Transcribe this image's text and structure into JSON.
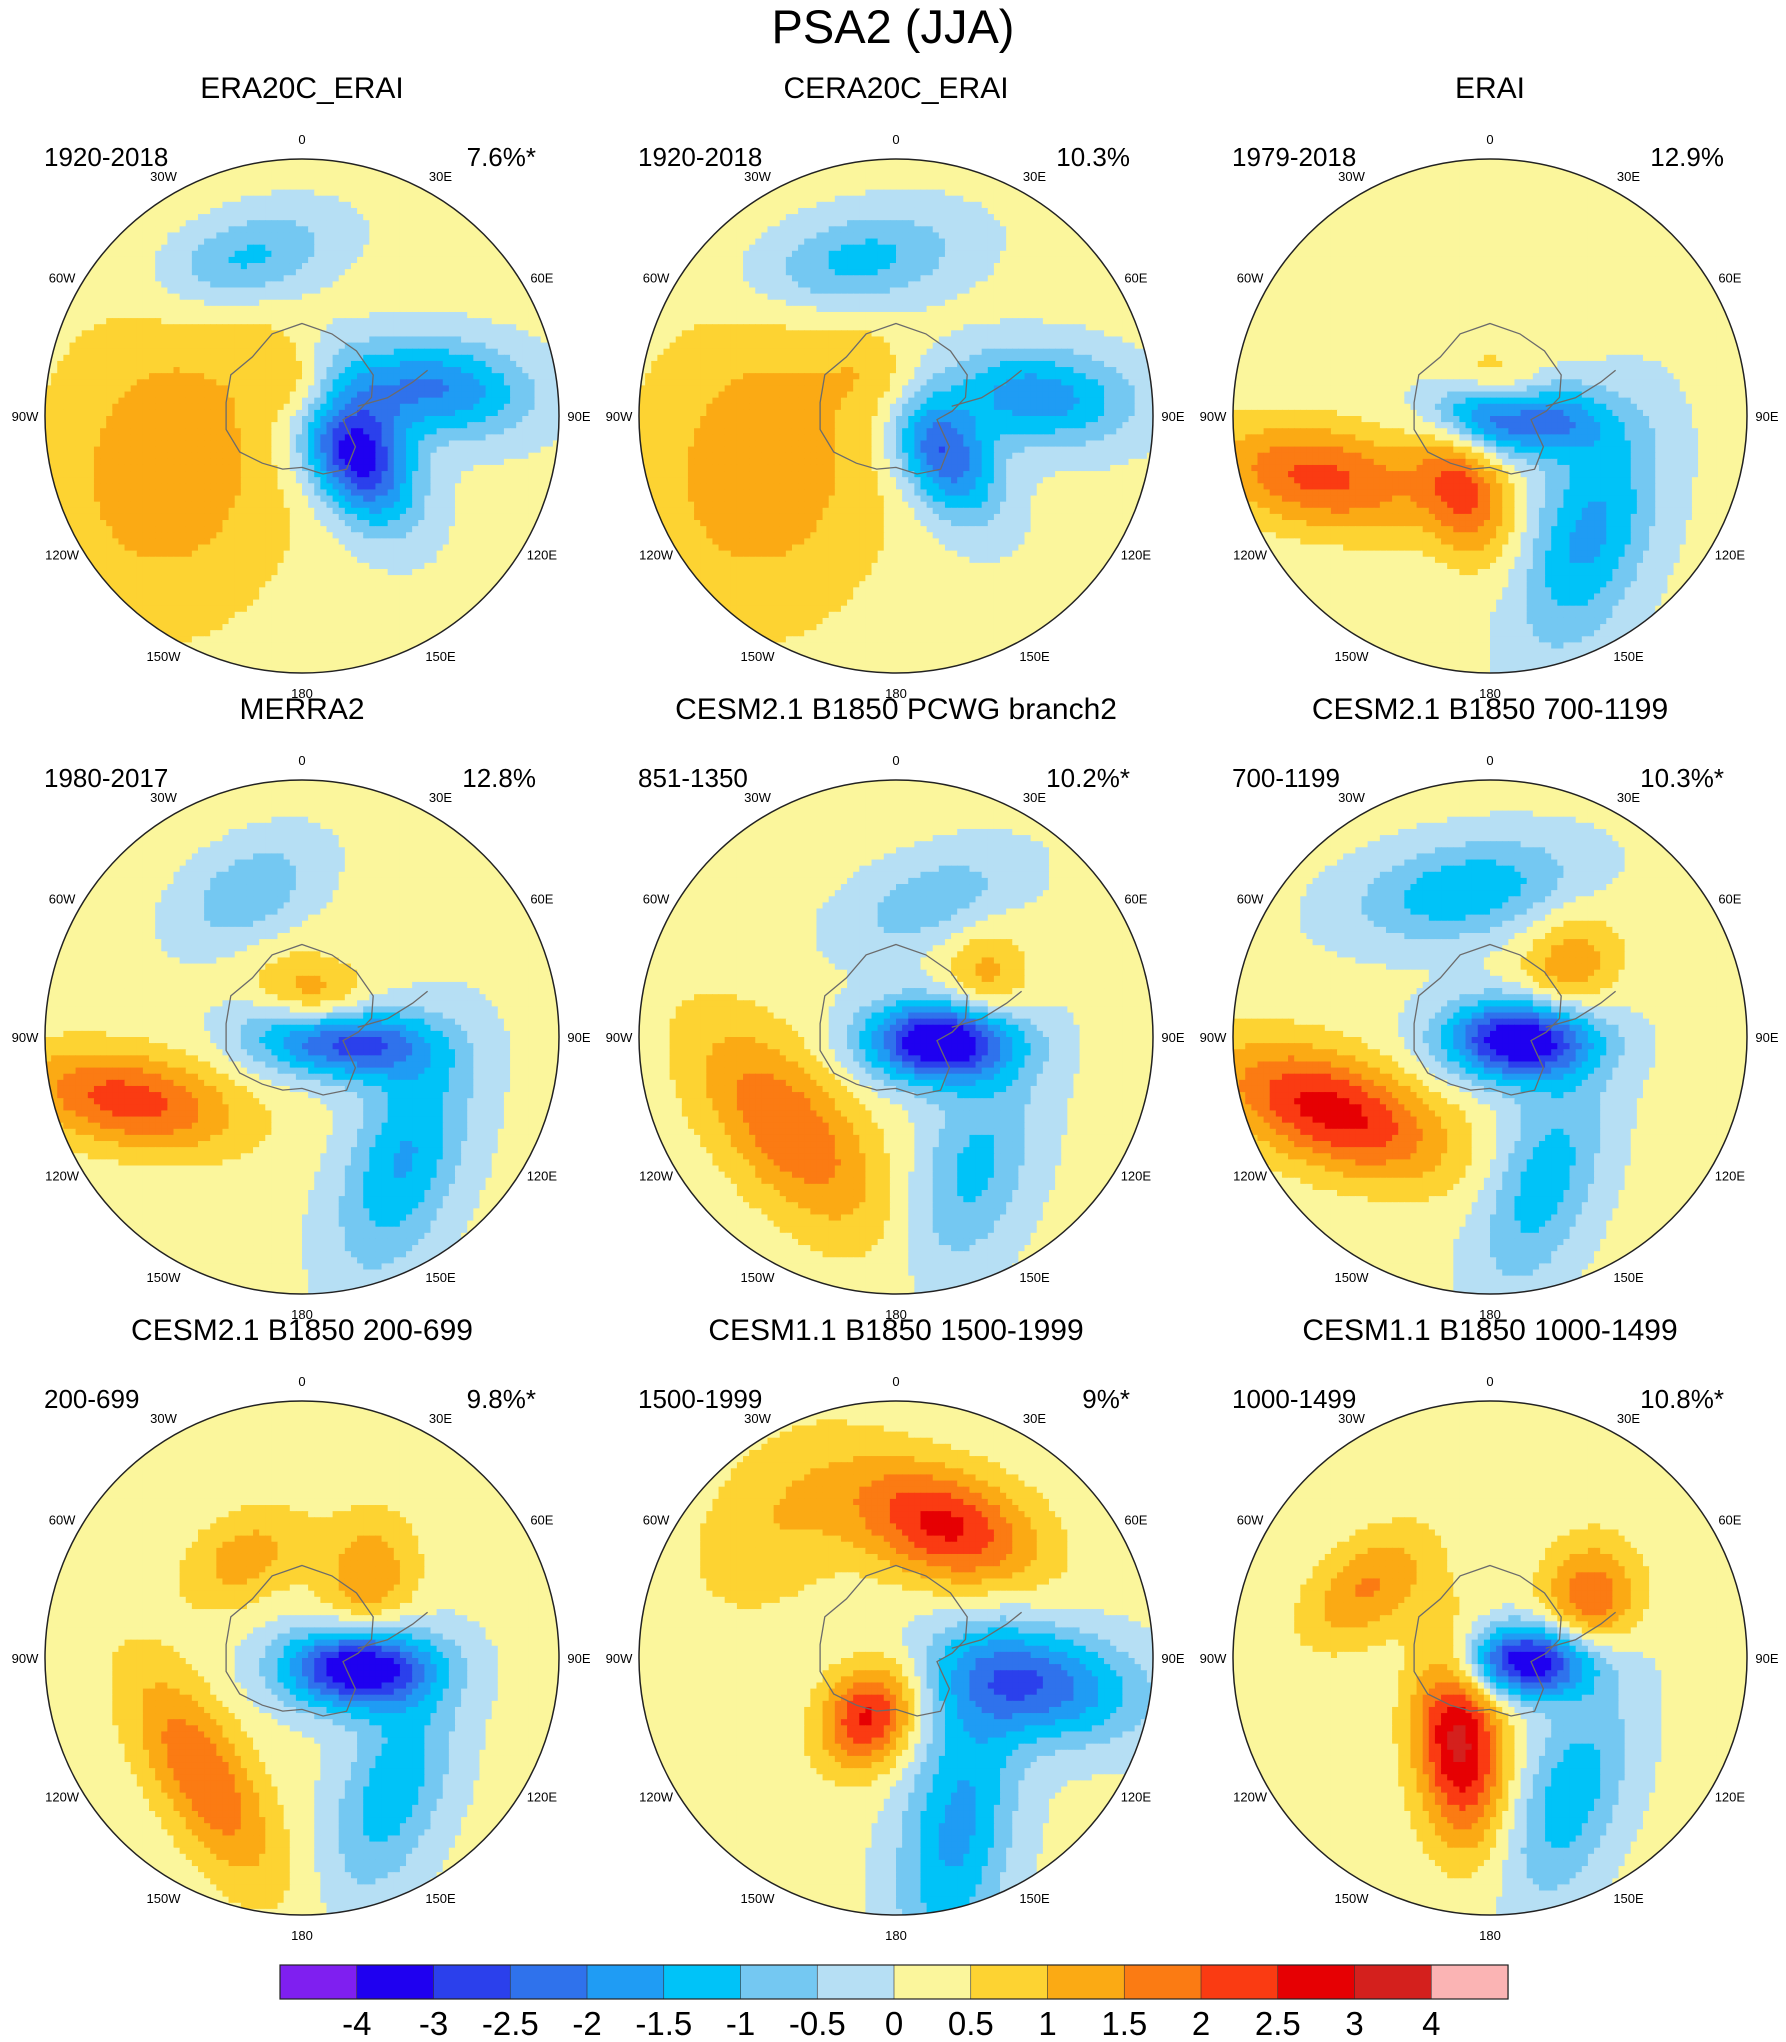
{
  "chart_data": {
    "type": "contour-map-panels",
    "title": "PSA2 (JJA)",
    "projection": "south polar stereographic",
    "longitude_labels": [
      "0",
      "30E",
      "60E",
      "90E",
      "120E",
      "150E",
      "180",
      "150W",
      "120W",
      "90W",
      "60W",
      "30W"
    ],
    "colorbar": {
      "ticks": [
        "-4",
        "-3",
        "-2.5",
        "-2",
        "-1.5",
        "-1",
        "-0.5",
        "0",
        "0.5",
        "1",
        "1.5",
        "2",
        "2.5",
        "3",
        "4"
      ],
      "colors": [
        "#7f1ff0",
        "#1f00f0",
        "#2b40ec",
        "#2f72ec",
        "#1f9cf4",
        "#00c3f8",
        "#74c8f2",
        "#b6dff4",
        "#fbf69c",
        "#fdd332",
        "#fbaa14",
        "#fb7b13",
        "#fa3b12",
        "#e60003",
        "#d4201d",
        "#fbb4b4"
      ]
    },
    "panels": [
      {
        "title": "ERA20C_ERAI",
        "period": "1920-2018",
        "variance": "7.6%*",
        "blobs": [
          {
            "lon": 120,
            "r": 0.22,
            "amp": -4.0,
            "sa": 0.13,
            "sb": 0.22,
            "ang": 150
          },
          {
            "lon": 30,
            "r": 0.1,
            "amp": 1.8,
            "sa": 0.17,
            "sb": 0.11,
            "ang": 40
          },
          {
            "lon": 78,
            "r": 0.52,
            "amp": -2.2,
            "sa": 0.13,
            "sb": 0.26,
            "ang": 95
          },
          {
            "lon": 340,
            "r": 0.65,
            "amp": -1.4,
            "sa": 0.12,
            "sb": 0.24,
            "ang": 75
          },
          {
            "lon": 250,
            "r": 0.55,
            "amp": 1.2,
            "sa": 0.35,
            "sb": 0.45,
            "ang": 10
          }
        ]
      },
      {
        "title": "CERA20C_ERAI",
        "period": "1920-2018",
        "variance": "10.3%",
        "blobs": [
          {
            "lon": 120,
            "r": 0.18,
            "amp": -3.3,
            "sa": 0.12,
            "sb": 0.22,
            "ang": 150
          },
          {
            "lon": 30,
            "r": 0.1,
            "amp": 1.7,
            "sa": 0.18,
            "sb": 0.12,
            "ang": 40
          },
          {
            "lon": 82,
            "r": 0.55,
            "amp": -2.0,
            "sa": 0.13,
            "sb": 0.26,
            "ang": 95
          },
          {
            "lon": 345,
            "r": 0.62,
            "amp": -1.5,
            "sa": 0.13,
            "sb": 0.28,
            "ang": 80
          },
          {
            "lon": 250,
            "r": 0.55,
            "amp": 1.2,
            "sa": 0.35,
            "sb": 0.45,
            "ang": 10
          }
        ]
      },
      {
        "title": "ERAI",
        "period": "1979-2018",
        "variance": "12.9%",
        "blobs": [
          {
            "lon": 92,
            "r": 0.1,
            "amp": -4.3,
            "sa": 0.1,
            "sb": 0.2,
            "ang": 95
          },
          {
            "lon": 60,
            "r": 0.1,
            "amp": 2.2,
            "sa": 0.15,
            "sb": 0.1,
            "ang": 30
          },
          {
            "lon": 250,
            "r": 0.7,
            "amp": 2.0,
            "sa": 0.14,
            "sb": 0.3,
            "ang": 100
          },
          {
            "lon": 140,
            "r": 0.6,
            "amp": -1.8,
            "sa": 0.16,
            "sb": 0.32,
            "ang": 20
          },
          {
            "lon": 200,
            "r": 0.3,
            "amp": 1.8,
            "sa": 0.12,
            "sb": 0.2,
            "ang": 160
          }
        ]
      },
      {
        "title": "MERRA2",
        "period": "1980-2017",
        "variance": "12.8%",
        "blobs": [
          {
            "lon": 95,
            "r": 0.15,
            "amp": -4.0,
            "sa": 0.1,
            "sb": 0.22,
            "ang": 95
          },
          {
            "lon": 40,
            "r": 0.12,
            "amp": 1.9,
            "sa": 0.17,
            "sb": 0.12,
            "ang": 30
          },
          {
            "lon": 250,
            "r": 0.72,
            "amp": 2.1,
            "sa": 0.13,
            "sb": 0.3,
            "ang": 100
          },
          {
            "lon": 140,
            "r": 0.62,
            "amp": -1.7,
            "sa": 0.15,
            "sb": 0.32,
            "ang": 20
          },
          {
            "lon": 340,
            "r": 0.6,
            "amp": -1.1,
            "sa": 0.12,
            "sb": 0.2,
            "ang": 60
          }
        ]
      },
      {
        "title": "CESM2.1 B1850 PCWG branch2",
        "period": "851-1350",
        "variance": "10.2%*",
        "blobs": [
          {
            "lon": 95,
            "r": 0.18,
            "amp": -4.2,
            "sa": 0.11,
            "sb": 0.2,
            "ang": 90
          },
          {
            "lon": 230,
            "r": 0.55,
            "amp": 1.8,
            "sa": 0.17,
            "sb": 0.35,
            "ang": 140
          },
          {
            "lon": 150,
            "r": 0.6,
            "amp": -1.3,
            "sa": 0.15,
            "sb": 0.3,
            "ang": 20
          },
          {
            "lon": 15,
            "r": 0.55,
            "amp": -1.0,
            "sa": 0.12,
            "sb": 0.25,
            "ang": 70
          },
          {
            "lon": 60,
            "r": 0.4,
            "amp": 1.2,
            "sa": 0.12,
            "sb": 0.15,
            "ang": 0
          }
        ]
      },
      {
        "title": "CESM2.1 B1850 700-1199",
        "period": "700-1199",
        "variance": "10.3%*",
        "blobs": [
          {
            "lon": 95,
            "r": 0.12,
            "amp": -4.0,
            "sa": 0.11,
            "sb": 0.2,
            "ang": 90
          },
          {
            "lon": 245,
            "r": 0.68,
            "amp": 2.6,
            "sa": 0.15,
            "sb": 0.32,
            "ang": 110
          },
          {
            "lon": 160,
            "r": 0.6,
            "amp": -1.5,
            "sa": 0.14,
            "sb": 0.3,
            "ang": 20
          },
          {
            "lon": 350,
            "r": 0.58,
            "amp": -1.6,
            "sa": 0.13,
            "sb": 0.3,
            "ang": 80
          },
          {
            "lon": 50,
            "r": 0.4,
            "amp": 1.3,
            "sa": 0.13,
            "sb": 0.16,
            "ang": 30
          }
        ]
      },
      {
        "title": "CESM2.1 B1850 200-699",
        "period": "200-699",
        "variance": "9.8%*",
        "blobs": [
          {
            "lon": 100,
            "r": 0.22,
            "amp": -4.0,
            "sa": 0.11,
            "sb": 0.2,
            "ang": 90
          },
          {
            "lon": 220,
            "r": 0.6,
            "amp": 1.8,
            "sa": 0.13,
            "sb": 0.33,
            "ang": 150
          },
          {
            "lon": 145,
            "r": 0.62,
            "amp": -1.5,
            "sa": 0.14,
            "sb": 0.3,
            "ang": 20
          },
          {
            "lon": 40,
            "r": 0.4,
            "amp": 1.3,
            "sa": 0.13,
            "sb": 0.18,
            "ang": 10
          },
          {
            "lon": 330,
            "r": 0.45,
            "amp": 1.1,
            "sa": 0.12,
            "sb": 0.18,
            "ang": 60
          }
        ]
      },
      {
        "title": "CESM1.1 B1850 1500-1999",
        "period": "1500-1999",
        "variance": "9%*",
        "blobs": [
          {
            "lon": 100,
            "r": 0.55,
            "amp": -2.5,
            "sa": 0.15,
            "sb": 0.28,
            "ang": 100
          },
          {
            "lon": 205,
            "r": 0.25,
            "amp": 2.5,
            "sa": 0.12,
            "sb": 0.15,
            "ang": 30
          },
          {
            "lon": 20,
            "r": 0.55,
            "amp": 2.5,
            "sa": 0.15,
            "sb": 0.26,
            "ang": 110
          },
          {
            "lon": 160,
            "r": 0.7,
            "amp": -1.8,
            "sa": 0.15,
            "sb": 0.4,
            "ang": 10
          },
          {
            "lon": 320,
            "r": 0.7,
            "amp": 0.8,
            "sa": 0.2,
            "sb": 0.3,
            "ang": 40
          }
        ]
      },
      {
        "title": "CESM1.1 B1850 1000-1499",
        "period": "1000-1499",
        "variance": "10.8%*",
        "blobs": [
          {
            "lon": 95,
            "r": 0.15,
            "amp": -3.8,
            "sa": 0.1,
            "sb": 0.18,
            "ang": 90
          },
          {
            "lon": 200,
            "r": 0.35,
            "amp": 3.0,
            "sa": 0.12,
            "sb": 0.27,
            "ang": 175
          },
          {
            "lon": 60,
            "r": 0.45,
            "amp": 1.8,
            "sa": 0.13,
            "sb": 0.16,
            "ang": 10
          },
          {
            "lon": 150,
            "r": 0.62,
            "amp": -1.5,
            "sa": 0.14,
            "sb": 0.3,
            "ang": 20
          },
          {
            "lon": 300,
            "r": 0.55,
            "amp": 1.4,
            "sa": 0.12,
            "sb": 0.2,
            "ang": 50
          }
        ]
      }
    ]
  }
}
